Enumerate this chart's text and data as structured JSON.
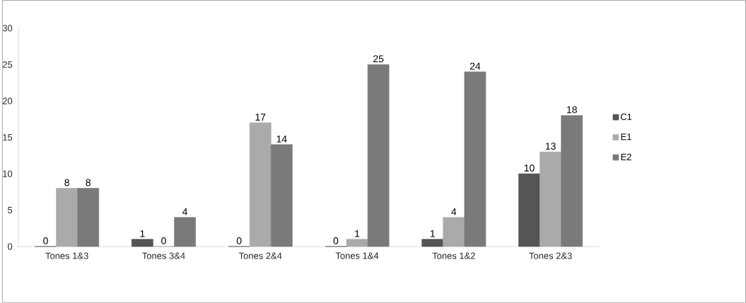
{
  "chart_data": {
    "type": "bar",
    "categories": [
      "Tones 1&3",
      "Tones 3&4",
      "Tones 2&4",
      "Tones 1&4",
      "Tones 1&2",
      "Tones 2&3"
    ],
    "series": [
      {
        "name": "C1",
        "color": "#555555",
        "values": [
          0,
          1,
          0,
          0,
          1,
          10
        ]
      },
      {
        "name": "E1",
        "color": "#aaaaaa",
        "values": [
          8,
          0,
          17,
          1,
          4,
          13
        ]
      },
      {
        "name": "E2",
        "color": "#7a7a7a",
        "values": [
          8,
          4,
          14,
          25,
          24,
          18
        ]
      }
    ],
    "ylim": [
      0,
      30
    ],
    "yticks": [
      0,
      5,
      10,
      15,
      20,
      25,
      30
    ],
    "grid": false,
    "legend": "right",
    "data_labels": true
  }
}
